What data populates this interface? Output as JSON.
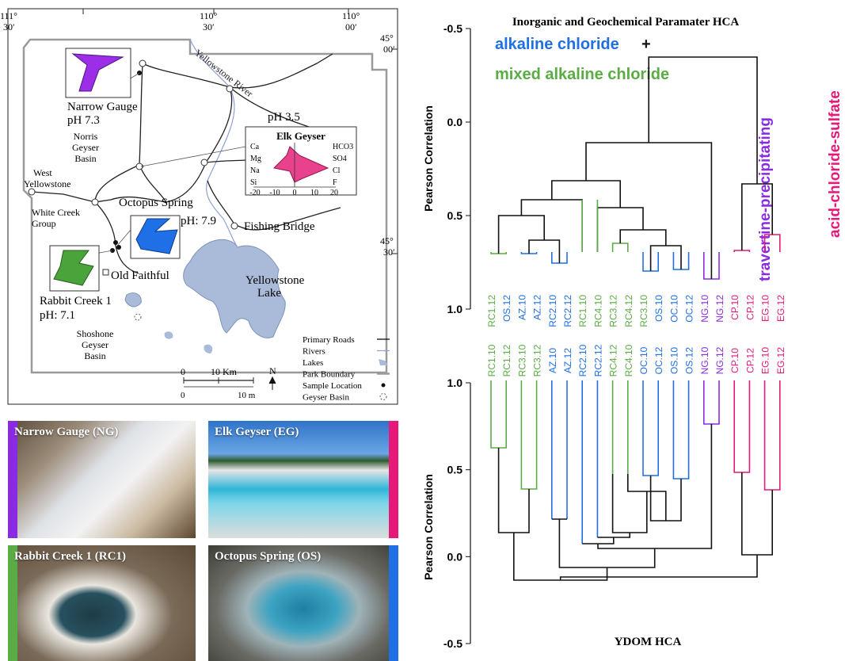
{
  "colors": {
    "alkaline": "#1f6fe6",
    "mixed": "#5aac44",
    "travertine": "#8a2be2",
    "travertine_light": "#a78ad8",
    "acid": "#e6197a",
    "black": "#111111"
  },
  "map": {
    "coords": {
      "lon_111": "111°",
      "lon_111_min": "30′",
      "lon_110_30": "110°",
      "lon_110_30_min": "30′",
      "lon_110": "110°",
      "lon_110_min": "00′",
      "lat_45": "45°",
      "lat_45_min": "00′",
      "lat_44_30": "45°",
      "lat_44_30_min": "30′"
    },
    "labels": {
      "river": "Yellowstone River",
      "narrow_gauge": "Narrow Gauge",
      "narrow_gauge_ph": "pH 7.3",
      "norris_1": "Norris",
      "norris_2": "Geyser",
      "norris_3": "Basin",
      "west_1": "West",
      "west_2": "Yellowstone",
      "white_creek_1": "White Creek",
      "white_creek_2": "Group",
      "octopus": "Octopus Spring",
      "octopus_ph": "pH: 7.9",
      "elk_ph": "pH 3.5",
      "fishing_bridge": "Fishing Bridge",
      "old_faithful": "Old Faithful",
      "rabbit_creek": "Rabbit Creek 1",
      "rabbit_creek_ph": "pH: 7.1",
      "yellowstone_1": "Yellowstone",
      "yellowstone_2": "Lake",
      "shoshone_1": "Shoshone",
      "shoshone_2": "Geyser",
      "shoshone_3": "Basin",
      "north": "N"
    },
    "elk_diagram": {
      "title": "Elk Geyser",
      "left_ions": [
        "Ca",
        "Mg",
        "Na",
        "Si"
      ],
      "right_ions": [
        "HCO3",
        "SO4",
        "Cl",
        "F"
      ],
      "axis_ticks": [
        "-20",
        "-10",
        "0",
        "10",
        "20"
      ]
    },
    "legend": {
      "items": [
        "Primary Roads",
        "Rivers",
        "Lakes",
        "Park Boundary",
        "Sample Location",
        "Geyser Basin"
      ]
    },
    "scalebar": {
      "km_ticks": [
        "0",
        "10 Km"
      ],
      "m_ticks": [
        "0",
        "10 m"
      ]
    }
  },
  "photos": [
    {
      "caption": "Narrow Gauge (NG)",
      "stripe": "#8a2be2"
    },
    {
      "caption": "Elk Geyser (EG)",
      "stripe": "#e6197a"
    },
    {
      "caption": "Rabbit Creek 1 (RC1)",
      "stripe": "#5aac44"
    },
    {
      "caption": "Octopus Spring (OS)",
      "stripe": "#1f6fe6"
    }
  ],
  "top_dendrogram": {
    "title": "Inorganic and Geochemical Paramater HCA",
    "ylabel": "Pearson Correlation",
    "yticks": [
      "-0.5",
      "0.0",
      "0.5",
      "1.0"
    ],
    "group_alkaline": "alkaline chloride",
    "group_plus": "+",
    "group_mixed": "mixed alkaline chloride",
    "group_travertine": "travertine-precipitating",
    "group_acid": "acid-chloride-sulfate",
    "leaves": [
      "RC1.12",
      "OS.12",
      "AZ.10",
      "AZ.12",
      "RC2.10",
      "RC2.12",
      "RC1.10",
      "RC4.10",
      "RC3.12",
      "RC4.12",
      "RC3.10",
      "OS.10",
      "OC.10",
      "OC.12",
      "NG.10",
      "NG.12",
      "CP.10",
      "CP.12",
      "EG.10",
      "EG.12"
    ]
  },
  "bottom_dendrogram": {
    "title": "YDOM HCA",
    "ylabel": "Pearson Correlation",
    "yticks": [
      "1.0",
      "0.5",
      "0.0",
      "-0.5"
    ],
    "leaves": [
      "RC1.10",
      "RC1.12",
      "RC3.10",
      "RC3.12",
      "AZ.10",
      "AZ.12",
      "RC2.10",
      "RC2.12",
      "RC4.12",
      "RC4.10",
      "OC.10",
      "OC.12",
      "OS.10",
      "OS.12",
      "NG.10",
      "NG.12",
      "CP.10",
      "CP.12",
      "EG.10",
      "EG.12"
    ]
  }
}
